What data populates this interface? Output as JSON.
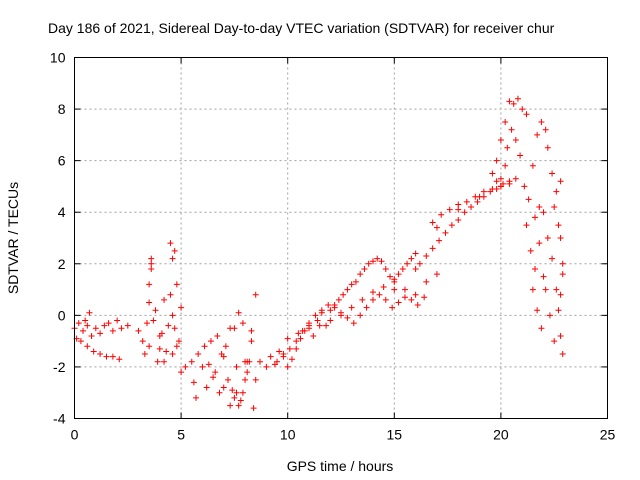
{
  "chart_data": {
    "type": "scatter",
    "title": "Day 186 of 2021, Sidereal Day-to-day VTEC variation (SDTVAR) for receiver chur",
    "xlabel": "GPS time / hours",
    "ylabel": "SDTVAR / TECUs",
    "xlim": [
      0,
      25
    ],
    "ylim": [
      -4,
      10
    ],
    "x_ticks": [
      0,
      5,
      10,
      15,
      20,
      25
    ],
    "y_ticks": [
      -4,
      -2,
      0,
      2,
      4,
      6,
      8,
      10
    ],
    "x_tick_labels": [
      "0",
      "5",
      "10",
      "15",
      "20",
      "25"
    ],
    "y_tick_labels": [
      "-4",
      "-2",
      "0",
      "2",
      "4",
      "6",
      "8",
      "10"
    ],
    "grid": true,
    "marker": "+",
    "color": "#ff0000",
    "series": [
      {
        "name": "SDTVAR",
        "x": [
          0.0,
          0.2,
          0.4,
          0.6,
          0.8,
          1.0,
          1.2,
          1.4,
          1.6,
          1.8,
          2.0,
          2.2,
          2.5,
          0.3,
          0.6,
          0.9,
          1.2,
          1.5,
          1.8,
          2.1,
          0.1,
          0.5,
          0.7,
          3.0,
          3.2,
          3.4,
          3.5,
          3.6,
          3.8,
          4.0,
          4.2,
          4.4,
          4.6,
          4.8,
          5.0,
          3.3,
          3.5,
          3.7,
          3.9,
          4.1,
          4.3,
          4.5,
          4.7,
          4.9,
          4.5,
          4.6,
          4.7,
          3.5,
          3.6,
          3.6,
          4.0,
          4.2,
          4.6,
          4.8,
          5.0,
          5.2,
          5.5,
          5.6,
          5.7,
          5.8,
          6.0,
          6.2,
          6.4,
          6.6,
          6.8,
          7.0,
          7.2,
          7.4,
          7.6,
          7.8,
          8.0,
          8.2,
          8.4,
          6.1,
          6.3,
          6.5,
          6.7,
          6.9,
          7.1,
          7.3,
          7.5,
          7.7,
          7.9,
          8.1,
          8.3,
          7.5,
          7.7,
          7.9,
          8.1,
          8.3,
          8.5,
          7.0,
          7.3,
          7.6,
          8.0,
          8.5,
          8.7,
          9.0,
          9.2,
          9.4,
          9.6,
          9.8,
          10.0,
          10.2,
          10.4,
          10.6,
          10.8,
          11.0,
          11.2,
          11.4,
          11.6,
          11.8,
          12.0,
          12.2,
          12.4,
          12.6,
          12.8,
          13.0,
          13.2,
          13.4,
          13.6,
          13.8,
          14.0,
          14.2,
          14.4,
          14.6,
          14.8,
          15.0,
          15.2,
          15.4,
          15.6,
          15.8,
          16.0,
          9.5,
          9.8,
          10.1,
          10.4,
          10.7,
          11.0,
          11.3,
          11.6,
          11.9,
          12.2,
          12.5,
          12.8,
          13.1,
          13.4,
          13.7,
          14.0,
          14.3,
          14.6,
          14.9,
          15.2,
          15.5,
          15.8,
          16.1,
          16.4,
          10.0,
          10.5,
          11.0,
          11.5,
          12.0,
          12.5,
          13.0,
          13.5,
          14.0,
          14.5,
          15.0,
          15.5,
          16.0,
          16.5,
          17.0,
          16.2,
          16.5,
          16.8,
          17.1,
          17.4,
          17.7,
          18.0,
          18.3,
          18.6,
          18.9,
          19.2,
          19.5,
          19.8,
          20.1,
          20.4,
          16.8,
          17.2,
          17.6,
          18.0,
          18.4,
          18.8,
          19.2,
          19.6,
          20.0,
          20.4,
          20.7,
          15.0,
          16.0,
          17.0,
          18.0,
          19.0,
          20.0,
          19.8,
          20.0,
          20.2,
          20.4,
          20.6,
          20.8,
          21.0,
          21.2,
          19.6,
          19.8,
          20.0,
          20.2,
          20.3,
          20.5,
          20.7,
          20.9,
          21.1,
          21.3,
          21.5,
          21.7,
          21.9,
          22.1,
          21.6,
          21.8,
          22.0,
          22.2,
          22.4,
          22.6,
          22.8,
          21.2,
          21.4,
          21.6,
          21.8,
          22.0,
          22.2,
          22.4,
          22.6,
          22.8,
          21.5,
          21.7,
          21.9,
          22.1,
          22.3,
          22.5,
          22.7,
          22.8,
          22.9,
          22.5,
          22.7,
          22.8,
          22.9,
          22.9
        ],
        "y": [
          -0.5,
          -0.3,
          -0.6,
          -0.4,
          -0.8,
          -0.5,
          -0.7,
          -0.4,
          -0.3,
          -0.6,
          -0.2,
          -0.5,
          -0.4,
          -1.0,
          -1.2,
          -1.4,
          -1.5,
          -1.6,
          -1.6,
          -1.7,
          -0.9,
          -0.2,
          0.1,
          -0.6,
          -1.0,
          -0.3,
          0.5,
          1.8,
          0.2,
          -0.8,
          0.6,
          -0.4,
          0.0,
          1.2,
          0.3,
          -1.5,
          -1.2,
          -0.2,
          -1.8,
          -0.7,
          -1.4,
          0.8,
          -0.5,
          -1.0,
          2.8,
          2.2,
          2.5,
          1.2,
          2.0,
          2.2,
          -1.3,
          -1.8,
          -1.5,
          -1.2,
          -2.2,
          -2.0,
          -1.8,
          -2.6,
          -3.2,
          -1.5,
          -2.0,
          -2.8,
          -1.0,
          -2.2,
          -3.0,
          -1.6,
          -2.5,
          -2.9,
          -2.0,
          -3.3,
          -2.5,
          -1.8,
          -3.6,
          -1.2,
          -1.9,
          -2.4,
          -0.8,
          -1.5,
          -1.2,
          -0.5,
          -3.2,
          -3.5,
          -3.0,
          -2.2,
          -1.0,
          -0.5,
          0.1,
          -0.3,
          -1.8,
          -0.6,
          0.8,
          -2.8,
          -3.5,
          -3.0,
          -1.8,
          -2.5,
          -1.8,
          -2.0,
          -1.6,
          -1.9,
          -1.4,
          -1.5,
          -2.0,
          -1.7,
          -1.3,
          -0.9,
          -0.6,
          -0.4,
          -0.8,
          -0.2,
          0.1,
          -0.4,
          0.2,
          0.4,
          0.6,
          0.8,
          1.0,
          1.2,
          1.3,
          1.6,
          1.8,
          2.0,
          2.1,
          2.2,
          2.1,
          1.8,
          1.5,
          1.4,
          1.6,
          1.8,
          2.0,
          2.2,
          1.8,
          -1.8,
          -1.6,
          -1.3,
          -1.0,
          -0.6,
          -0.3,
          0.0,
          0.2,
          0.4,
          0.3,
          0.1,
          -0.1,
          -0.3,
          0.0,
          0.3,
          0.6,
          0.8,
          0.6,
          0.3,
          0.5,
          0.7,
          0.6,
          0.4,
          0.7,
          -0.9,
          -0.7,
          -0.5,
          -0.4,
          -0.2,
          0.0,
          0.3,
          0.6,
          0.9,
          1.1,
          1.3,
          1.0,
          0.8,
          1.3,
          1.6,
          2.0,
          2.3,
          2.6,
          2.9,
          3.2,
          3.5,
          3.7,
          4.0,
          4.2,
          4.4,
          4.6,
          4.8,
          4.9,
          5.1,
          5.2,
          3.6,
          3.9,
          4.1,
          4.3,
          4.4,
          4.6,
          4.8,
          4.9,
          5.0,
          5.1,
          5.3,
          1.0,
          2.4,
          3.4,
          4.1,
          4.6,
          5.0,
          6.0,
          6.8,
          7.5,
          8.3,
          8.2,
          8.4,
          8.0,
          7.8,
          5.5,
          5.2,
          5.3,
          5.8,
          6.5,
          7.2,
          6.8,
          6.2,
          5.0,
          4.5,
          5.8,
          7.0,
          7.5,
          7.2,
          3.8,
          4.2,
          4.0,
          6.5,
          5.5,
          4.8,
          5.2,
          3.5,
          2.5,
          1.8,
          2.8,
          1.5,
          3.0,
          2.2,
          1.0,
          0.8,
          1.0,
          0.2,
          -0.5,
          1.0,
          0.0,
          -1.0,
          0.2,
          -0.8,
          -1.5,
          4.2,
          3.5,
          3.0,
          2.0,
          1.6
        ]
      }
    ]
  }
}
